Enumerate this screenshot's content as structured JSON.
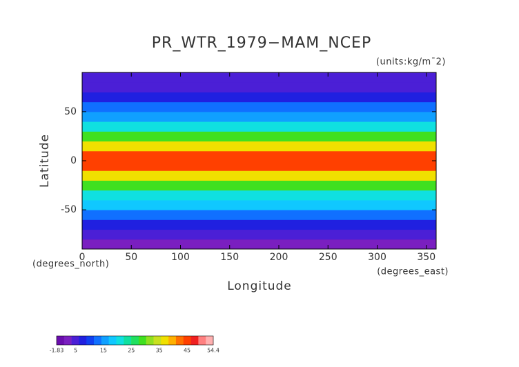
{
  "chart_data": {
    "type": "zonal-map",
    "title": "PR_WTR_1979−MAM_NCEP",
    "units_label": "(units:kg/m¯2)",
    "x_label": "Longitude",
    "y_label": "Latitude",
    "x_units_label": "(degrees_east)",
    "y_units_label": "(degrees_north)",
    "xlim": [
      0,
      360
    ],
    "xticks": [
      0,
      50,
      100,
      150,
      200,
      250,
      300,
      350
    ],
    "ylim": [
      -90,
      90
    ],
    "yticks": [
      -50,
      0,
      50
    ],
    "latitudes": [
      -85,
      -75,
      -65,
      -55,
      -45,
      -35,
      -25,
      -15,
      -5,
      5,
      15,
      25,
      35,
      45,
      55,
      65,
      75,
      85
    ],
    "values": [
      2,
      4,
      8,
      12,
      17,
      22,
      30,
      38,
      44,
      45,
      38,
      28,
      20,
      15,
      12,
      8,
      5,
      4
    ],
    "colorbar": {
      "lim": [
        -1.83,
        54.4
      ],
      "ticks": [
        {
          "value": -1.83,
          "label": "-1.83"
        },
        5,
        15,
        25,
        35,
        45,
        54.4
      ],
      "colors": [
        "#6a0dad",
        "#7a1fc0",
        "#4b1fd6",
        "#2020e0",
        "#1040f0",
        "#1070ff",
        "#10a0ff",
        "#10c8ff",
        "#10e0e0",
        "#10e0a0",
        "#20e060",
        "#40e020",
        "#90e020",
        "#c8e020",
        "#f0e000",
        "#ffb000",
        "#ff7000",
        "#ff4000",
        "#f02020",
        "#ff8080",
        "#ffb0b0"
      ]
    }
  }
}
